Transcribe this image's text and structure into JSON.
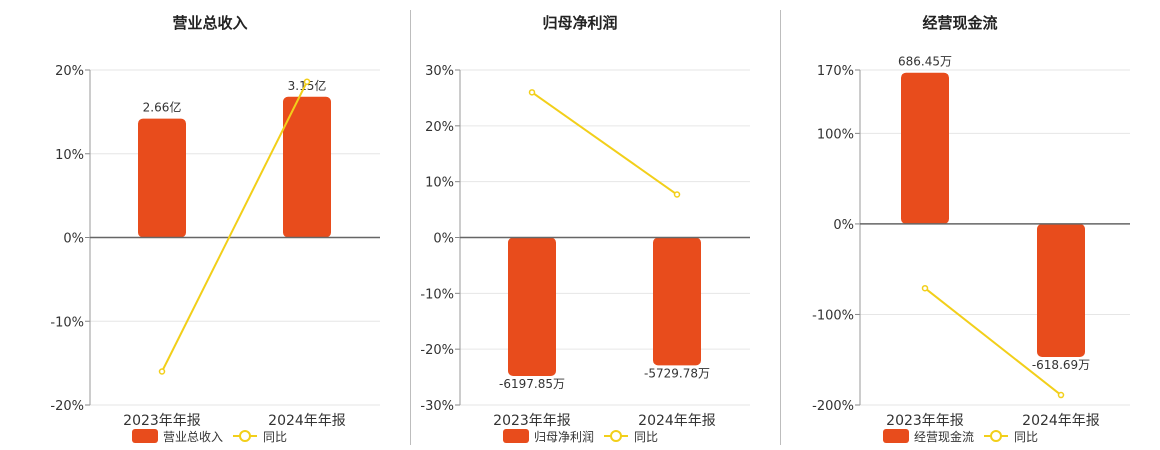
{
  "legend": {
    "same_period_label": "同比",
    "bar_color": "#e84c1c",
    "line_color": "#f2cf1a"
  },
  "chart_data": [
    {
      "type": "bar",
      "title": "营业总收入",
      "categories": [
        "2023年年报",
        "2024年年报"
      ],
      "bar_series_name": "营业总收入",
      "bar_labels": [
        "2.66亿",
        "3.15亿"
      ],
      "bar_values": [
        14.2,
        16.8
      ],
      "line_series_name": "同比",
      "line_values": [
        -16.0,
        18.6
      ],
      "yticks": [
        "20%",
        "10%",
        "0%",
        "-10%",
        "-20%"
      ],
      "ylim": [
        -20,
        20
      ],
      "legend_position": "bottom-center"
    },
    {
      "type": "bar",
      "title": "归母净利润",
      "categories": [
        "2023年年报",
        "2024年年报"
      ],
      "bar_series_name": "归母净利润",
      "bar_labels": [
        "-6197.85万",
        "-5729.78万"
      ],
      "bar_values": [
        -24.8,
        -22.9
      ],
      "line_series_name": "同比",
      "line_values": [
        26.0,
        7.7
      ],
      "yticks": [
        "30%",
        "20%",
        "10%",
        "0%",
        "-10%",
        "-20%",
        "-30%"
      ],
      "ylim": [
        -30,
        30
      ],
      "legend_position": "bottom-center"
    },
    {
      "type": "bar",
      "title": "经营现金流",
      "categories": [
        "2023年年报",
        "2024年年报"
      ],
      "bar_series_name": "经营现金流",
      "bar_labels": [
        "686.45万",
        "-618.69万"
      ],
      "bar_values": [
        167,
        -147
      ],
      "line_series_name": "同比",
      "line_values": [
        -71,
        -189
      ],
      "yticks": [
        "170%",
        "100%",
        "0%",
        "-100%",
        "-200%"
      ],
      "ylim": [
        -200,
        170
      ],
      "legend_position": "bottom-center"
    }
  ]
}
